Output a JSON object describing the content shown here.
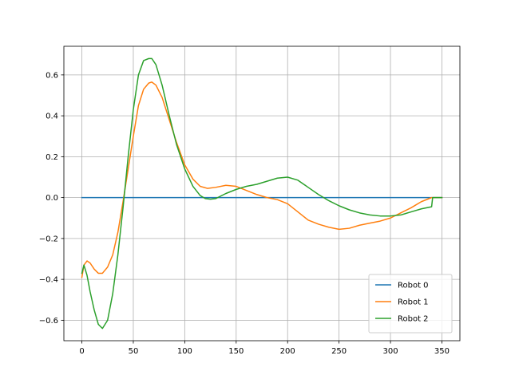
{
  "chart_data": {
    "type": "line",
    "title": "",
    "xlabel": "",
    "ylabel": "",
    "xlim": [
      -17.5,
      367.5
    ],
    "ylim": [
      -0.7,
      0.74
    ],
    "xticks": [
      0,
      50,
      100,
      150,
      200,
      250,
      300,
      350
    ],
    "yticks": [
      -0.6,
      -0.4,
      -0.2,
      0.0,
      0.2,
      0.4,
      0.6
    ],
    "xtick_labels": [
      "0",
      "50",
      "100",
      "150",
      "200",
      "250",
      "300",
      "350"
    ],
    "ytick_labels": [
      "−0.6",
      "−0.4",
      "−0.2",
      "0.0",
      "0.2",
      "0.4",
      "0.6"
    ],
    "grid": true,
    "legend_position": "lower-right",
    "series": [
      {
        "name": "Robot 0",
        "color": "#1f77b4",
        "x": [
          0,
          350
        ],
        "y": [
          0.0,
          0.0
        ]
      },
      {
        "name": "Robot 1",
        "color": "#ff7f0e",
        "x": [
          0,
          2,
          5,
          8,
          12,
          16,
          20,
          25,
          30,
          35,
          40,
          45,
          50,
          55,
          60,
          65,
          68,
          72,
          78,
          85,
          92,
          100,
          108,
          115,
          122,
          130,
          140,
          150,
          160,
          170,
          180,
          190,
          200,
          210,
          220,
          230,
          240,
          250,
          260,
          270,
          280,
          290,
          300,
          310,
          320,
          330,
          340,
          345,
          350
        ],
        "y": [
          -0.39,
          -0.33,
          -0.31,
          -0.32,
          -0.35,
          -0.37,
          -0.37,
          -0.34,
          -0.28,
          -0.17,
          -0.02,
          0.14,
          0.3,
          0.45,
          0.53,
          0.56,
          0.565,
          0.55,
          0.49,
          0.38,
          0.27,
          0.16,
          0.09,
          0.055,
          0.045,
          0.05,
          0.06,
          0.055,
          0.035,
          0.015,
          0.0,
          -0.01,
          -0.03,
          -0.07,
          -0.11,
          -0.13,
          -0.145,
          -0.155,
          -0.15,
          -0.135,
          -0.125,
          -0.115,
          -0.1,
          -0.075,
          -0.05,
          -0.02,
          0.0,
          0.0,
          0.0
        ]
      },
      {
        "name": "Robot 2",
        "color": "#2ca02c",
        "x": [
          0,
          2,
          5,
          8,
          12,
          16,
          20,
          25,
          30,
          35,
          40,
          45,
          50,
          55,
          60,
          65,
          68,
          72,
          78,
          85,
          92,
          100,
          108,
          115,
          120,
          125,
          130,
          140,
          150,
          160,
          170,
          180,
          190,
          200,
          210,
          220,
          230,
          240,
          250,
          260,
          270,
          280,
          290,
          300,
          310,
          320,
          330,
          340,
          341,
          345,
          350
        ],
        "y": [
          -0.37,
          -0.33,
          -0.38,
          -0.46,
          -0.55,
          -0.62,
          -0.64,
          -0.6,
          -0.47,
          -0.28,
          -0.05,
          0.2,
          0.43,
          0.6,
          0.67,
          0.68,
          0.68,
          0.65,
          0.55,
          0.4,
          0.26,
          0.14,
          0.055,
          0.01,
          -0.005,
          -0.008,
          -0.005,
          0.02,
          0.04,
          0.055,
          0.065,
          0.08,
          0.095,
          0.1,
          0.085,
          0.05,
          0.015,
          -0.015,
          -0.04,
          -0.06,
          -0.075,
          -0.085,
          -0.09,
          -0.09,
          -0.085,
          -0.07,
          -0.055,
          -0.045,
          0.0,
          0.0,
          0.0
        ]
      }
    ]
  }
}
